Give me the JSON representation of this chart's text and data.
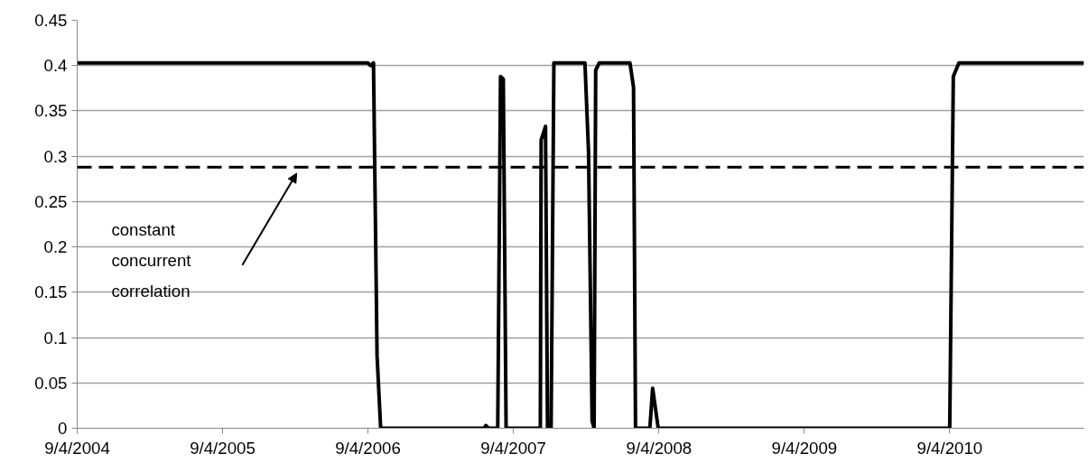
{
  "chart_data": {
    "type": "line",
    "x": [
      "2004-09-04",
      "2006-09-04",
      "2006-09-11",
      "2006-09-18",
      "2006-09-27",
      "2006-10-06",
      "2007-06-23",
      "2007-06-27",
      "2007-07-04",
      "2007-07-27",
      "2007-08-03",
      "2007-08-10",
      "2007-08-17",
      "2007-11-11",
      "2007-11-13",
      "2007-11-24",
      "2007-11-29",
      "2007-12-08",
      "2007-12-15",
      "2008-03-02",
      "2008-03-11",
      "2008-03-20",
      "2008-03-25",
      "2008-03-29",
      "2008-04-07",
      "2008-06-23",
      "2008-07-02",
      "2008-07-07",
      "2008-08-12",
      "2008-08-19",
      "2008-09-02",
      "2010-09-04",
      "2010-09-13",
      "2010-09-27",
      "2011-08-07"
    ],
    "series": [
      {
        "color": "#000000",
        "values": [
          0.403,
          0.403,
          0.4,
          0.403,
          0.08,
          0,
          0,
          0.003,
          0,
          0,
          0.388,
          0.385,
          0,
          0,
          0.318,
          0.333,
          0,
          0,
          0.403,
          0.403,
          0.305,
          0.008,
          0,
          0.395,
          0.403,
          0.403,
          0.376,
          0,
          0,
          0.044,
          0,
          0,
          0.388,
          0.403,
          0.403
        ]
      }
    ],
    "xlim": [
      "2004-09-04",
      "2011-08-07"
    ],
    "xticks": [
      {
        "value": "2004-09-04",
        "label": "9/4/2004"
      },
      {
        "value": "2005-09-04",
        "label": "9/4/2005"
      },
      {
        "value": "2006-09-04",
        "label": "9/4/2006"
      },
      {
        "value": "2007-09-04",
        "label": "9/4/2007"
      },
      {
        "value": "2008-09-04",
        "label": "9/4/2008"
      },
      {
        "value": "2009-09-04",
        "label": "9/4/2009"
      },
      {
        "value": "2010-09-04",
        "label": "9/4/2010"
      }
    ],
    "ylim": [
      0,
      0.45
    ],
    "yticks": [
      0,
      {
        "value": 0.05,
        "label": "0.05"
      },
      {
        "value": 0.1,
        "label": "0.1"
      },
      {
        "value": 0.15,
        "label": "0.15"
      },
      {
        "value": 0.2,
        "label": "0.2"
      },
      {
        "value": 0.25,
        "label": "0.25"
      },
      {
        "value": 0.3,
        "label": "0.3"
      },
      {
        "value": 0.35,
        "label": "0.35"
      },
      {
        "value": 0.4,
        "label": "0.4"
      },
      {
        "value": 0.45,
        "label": "0.45"
      }
    ],
    "ref_lines": [
      {
        "axis": "y",
        "value": 0.288,
        "label": "constant concurrent correlation",
        "color": "#000000",
        "line_style": "dashed"
      }
    ],
    "grid": "y",
    "marker": "none",
    "line_style": "solid"
  }
}
